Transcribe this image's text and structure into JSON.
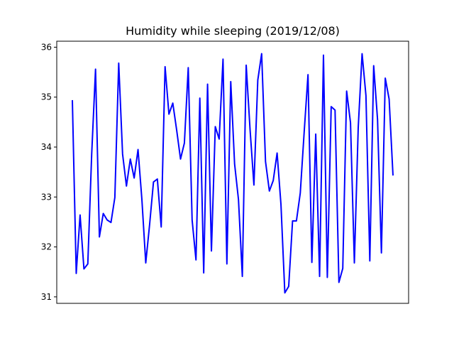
{
  "chart_data": {
    "type": "line",
    "title": "Humidity while sleeping (2019/12/08)",
    "xlabel": "",
    "ylabel": "",
    "ylim": [
      30.87,
      36.12
    ],
    "yticks": [
      31,
      32,
      33,
      34,
      35,
      36
    ],
    "x_ticks_visible": false,
    "grid": false,
    "line_color": "#0000ff",
    "series": [
      {
        "values": [
          34.94,
          31.47,
          32.64,
          31.56,
          31.66,
          33.85,
          35.56,
          32.2,
          32.67,
          32.54,
          32.49,
          32.99,
          35.68,
          33.86,
          33.22,
          33.76,
          33.38,
          33.95,
          32.95,
          31.68,
          32.45,
          33.3,
          33.36,
          32.4,
          35.61,
          34.66,
          34.88,
          34.34,
          33.76,
          34.08,
          35.59,
          32.54,
          31.74,
          34.98,
          31.48,
          35.26,
          31.92,
          34.41,
          34.16,
          35.76,
          31.66,
          35.31,
          33.66,
          32.95,
          31.41,
          35.64,
          34.35,
          33.24,
          35.34,
          35.87,
          33.71,
          33.12,
          33.33,
          33.88,
          32.85,
          31.08,
          31.21,
          32.52,
          32.52,
          33.08,
          34.29,
          35.45,
          31.69,
          34.26,
          31.41,
          35.84,
          31.39,
          34.81,
          34.74,
          31.29,
          31.57,
          35.12,
          34.49,
          31.68,
          34.39,
          35.87,
          35.03,
          31.72,
          35.63,
          34.55,
          31.88,
          35.38,
          34.96,
          33.43
        ]
      }
    ]
  }
}
